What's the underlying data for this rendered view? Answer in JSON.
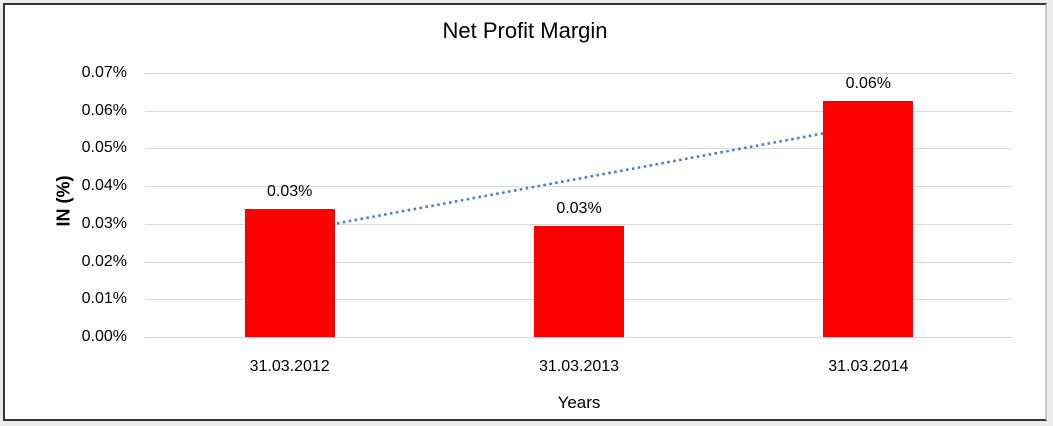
{
  "chart_data": {
    "type": "bar",
    "title": "Net Profit Margin",
    "xlabel": "Years",
    "ylabel": "IN (%)",
    "categories": [
      "31.03.2012",
      "31.03.2013",
      "31.03.2014"
    ],
    "values": [
      0.034,
      0.0295,
      0.0625
    ],
    "data_labels": [
      "0.03%",
      "0.03%",
      "0.06%"
    ],
    "ylim": [
      0,
      0.07
    ],
    "ytick_step": 0.01,
    "ytick_labels": [
      "0.00%",
      "0.01%",
      "0.02%",
      "0.03%",
      "0.04%",
      "0.05%",
      "0.06%",
      "0.07%"
    ],
    "grid": "horizontal",
    "legend": "none",
    "bar_color": "#FF0000",
    "gridline_color": "#D9D9D9",
    "text_color": "#000000",
    "trendline": {
      "type": "linear",
      "style": "dotted",
      "color": "#4F81BD",
      "start_value": 0.0278,
      "end_value": 0.0562
    }
  }
}
